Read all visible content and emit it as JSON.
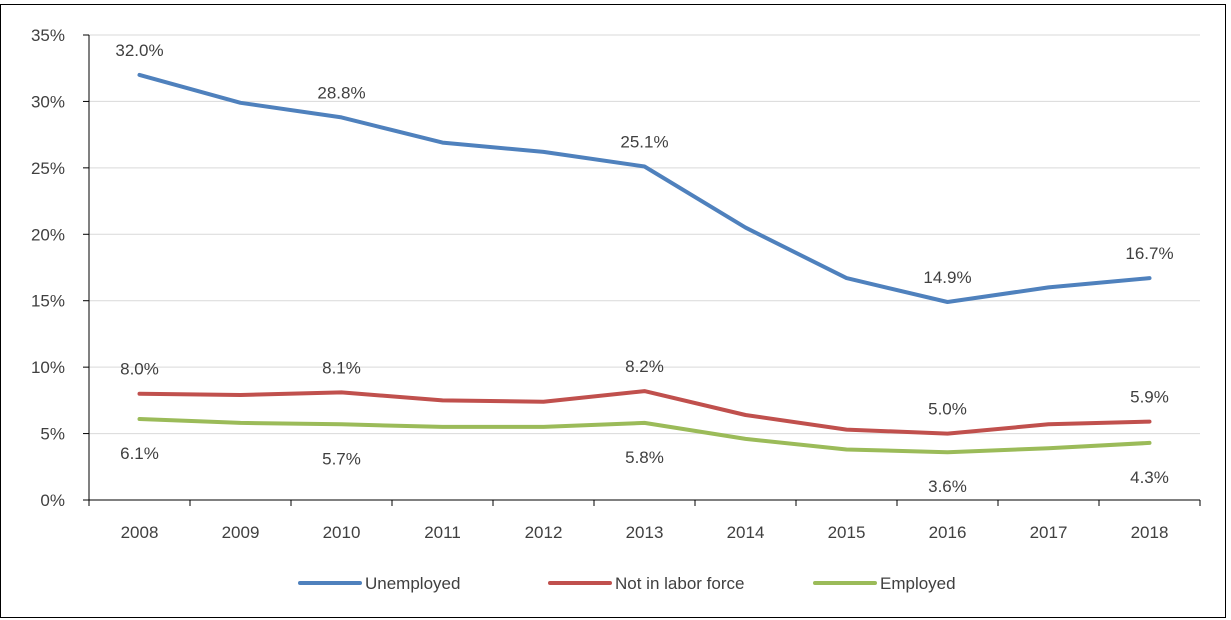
{
  "chart_data": {
    "type": "line",
    "title": "",
    "xlabel": "",
    "ylabel": "",
    "x": [
      "2008",
      "2009",
      "2010",
      "2011",
      "2012",
      "2013",
      "2014",
      "2015",
      "2016",
      "2017",
      "2018"
    ],
    "ylim": [
      0,
      35
    ],
    "yticks": [
      "0%",
      "5%",
      "10%",
      "15%",
      "20%",
      "25%",
      "30%",
      "35%"
    ],
    "ytick_values": [
      0,
      5,
      10,
      15,
      20,
      25,
      30,
      35
    ],
    "grid": true,
    "legend_position": "bottom",
    "series": [
      {
        "name": "Unemployed",
        "color": "#4F81BD",
        "values": [
          32.0,
          29.9,
          28.8,
          26.9,
          26.2,
          25.1,
          20.5,
          16.7,
          14.9,
          16.0,
          16.7
        ],
        "labels": [
          {
            "index": 0,
            "text": "32.0%",
            "position": "above"
          },
          {
            "index": 2,
            "text": "28.8%",
            "position": "above"
          },
          {
            "index": 5,
            "text": "25.1%",
            "position": "above"
          },
          {
            "index": 8,
            "text": "14.9%",
            "position": "above"
          },
          {
            "index": 10,
            "text": "16.7%",
            "position": "above"
          }
        ]
      },
      {
        "name": "Not in labor force",
        "color": "#C0504D",
        "values": [
          8.0,
          7.9,
          8.1,
          7.5,
          7.4,
          8.2,
          6.4,
          5.3,
          5.0,
          5.7,
          5.9
        ],
        "labels": [
          {
            "index": 0,
            "text": "8.0%",
            "position": "above"
          },
          {
            "index": 2,
            "text": "8.1%",
            "position": "above"
          },
          {
            "index": 5,
            "text": "8.2%",
            "position": "above"
          },
          {
            "index": 8,
            "text": "5.0%",
            "position": "above"
          },
          {
            "index": 10,
            "text": "5.9%",
            "position": "above"
          }
        ]
      },
      {
        "name": "Employed",
        "color": "#9BBB59",
        "values": [
          6.1,
          5.8,
          5.7,
          5.5,
          5.5,
          5.8,
          4.6,
          3.8,
          3.6,
          3.9,
          4.3
        ],
        "labels": [
          {
            "index": 0,
            "text": "6.1%",
            "position": "below"
          },
          {
            "index": 2,
            "text": "5.7%",
            "position": "below"
          },
          {
            "index": 5,
            "text": "5.8%",
            "position": "below"
          },
          {
            "index": 8,
            "text": "3.6%",
            "position": "below"
          },
          {
            "index": 10,
            "text": "4.3%",
            "position": "below"
          }
        ]
      }
    ]
  }
}
